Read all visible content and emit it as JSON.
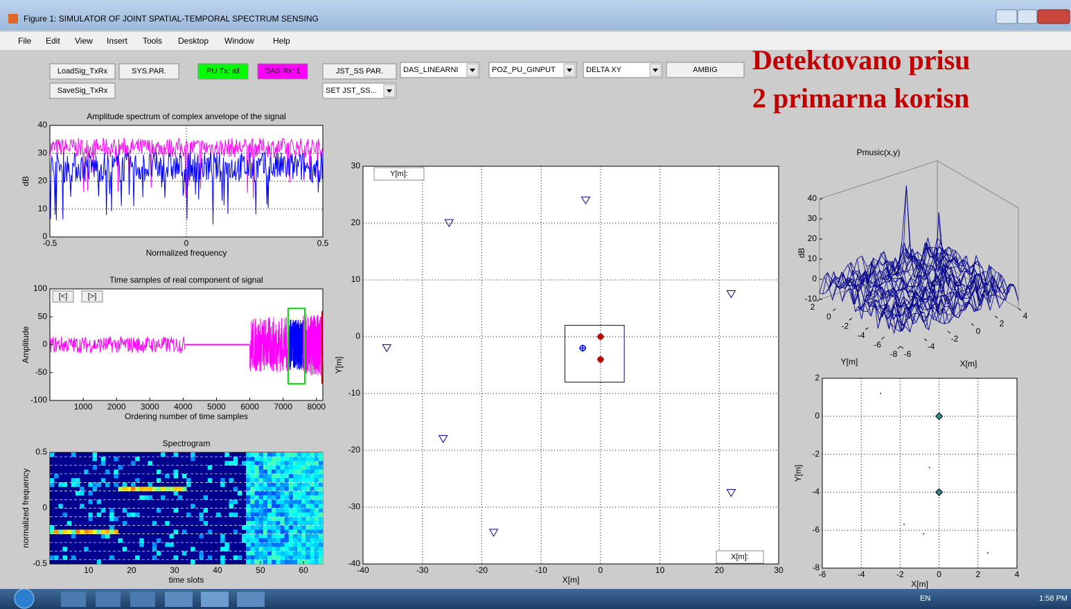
{
  "window": {
    "title": "Figure 1: SIMULATOR OF JOINT SPATIAL-TEMPORAL SPECTRUM SENSING"
  },
  "menu": [
    "File",
    "Edit",
    "View",
    "Insert",
    "Tools",
    "Desktop",
    "Window",
    "Help"
  ],
  "buttons": [
    {
      "label": "LoadSig_TxRx",
      "color": "#f0f0f0"
    },
    {
      "label": "SYS.PAR.",
      "color": "#f0f0f0"
    },
    {
      "label": "PU Tx: all",
      "color": "#00ff00"
    },
    {
      "label": "DAS Rx: 1",
      "color": "#ff00ff"
    },
    {
      "label": "JST_SS PAR.",
      "color": "#f0f0f0"
    },
    {
      "label": "AMBIG",
      "color": "#f0f0f0"
    },
    {
      "label": "SaveSig_TxRx",
      "color": "#f0f0f0"
    }
  ],
  "dropdowns": [
    "DAS_LINEARNI",
    "POZ_PU_GINPUT",
    "DELTA XY",
    "SET JST_SS..."
  ],
  "message": [
    "Detektovano prisu",
    "2 primarna korisn"
  ],
  "plots": [
    {
      "title": "Amplitude spectrum of complex anvelope of the signal",
      "xlabel": "Normalized frequency",
      "ylabel": "dB",
      "xlim": [
        -0.5,
        0.5
      ],
      "ylim": [
        0,
        40
      ],
      "xticks": [
        -0.5,
        0,
        0.5
      ],
      "yticks": [
        0,
        10,
        20,
        30,
        40
      ],
      "grid": true
    },
    {
      "title": "Time samples of real component of signal",
      "xlabel": "Ordering number of time samples",
      "ylabel": "Amplitude",
      "xlim": [
        0,
        8192
      ],
      "ylim": [
        -100,
        100
      ],
      "xticks": [
        1000,
        2000,
        3000,
        4000,
        5000,
        6000,
        7000,
        8000
      ],
      "yticks": [
        -100,
        -50,
        0,
        50,
        100
      ],
      "grid": false,
      "pager": [
        "[<]",
        "[>]"
      ]
    },
    {
      "title": "Spectrogram",
      "xlabel": "time slots",
      "ylabel": "normalized frequency",
      "xlim": [
        1,
        64.5
      ],
      "ylim": [
        -0.5,
        0.5
      ],
      "xticks": [
        10,
        20,
        30,
        40,
        50,
        60
      ],
      "yticks": [
        -0.5,
        0,
        0.5
      ],
      "grid": false
    },
    {
      "xlabel": "X[m]",
      "ylabel": "Y[m]",
      "xlim": [
        -40,
        30
      ],
      "ylim": [
        -40,
        30
      ],
      "xticks": [
        -40,
        -30,
        -20,
        -10,
        0,
        10,
        20,
        30
      ],
      "yticks": [
        -40,
        -30,
        -20,
        -10,
        0,
        10,
        20,
        30
      ],
      "grid": true,
      "annotations": [
        "Y[m]:",
        "X[m]:"
      ],
      "receivers": {
        "x": [
          -36,
          -25.5,
          -2.5,
          22,
          -26.5,
          -18,
          22
        ],
        "y": [
          -2,
          20,
          24,
          7.5,
          -18,
          -34.5,
          -27.5
        ],
        "color": "#00008b"
      },
      "targets": {
        "x": [
          0,
          0
        ],
        "y": [
          0,
          -4
        ],
        "color": "#ff0000"
      },
      "estimate": {
        "x": [
          -3
        ],
        "y": [
          -2
        ],
        "color": "#0000ff"
      },
      "region": {
        "x": [
          -6,
          4
        ],
        "y": [
          -8,
          2
        ],
        "color": "#00008b"
      }
    },
    {
      "title": "Pmusic(x,y)",
      "xlabel": "X[m]",
      "ylabel": "Y[m]",
      "zlabel": "dB",
      "xlim": [
        -6,
        4
      ],
      "ylim": [
        -8,
        2
      ],
      "zlim": [
        -10,
        40
      ],
      "xticks": [
        -6,
        -4,
        -2,
        0,
        2,
        4
      ],
      "yticks": [
        -8,
        -6,
        -4,
        -2,
        0,
        2
      ],
      "zticks": [
        -10,
        0,
        10,
        20,
        30,
        40
      ]
    },
    {
      "xlabel": "X[m]",
      "ylabel": "Y[m]",
      "xlim": [
        -6,
        4
      ],
      "ylim": [
        -8,
        2
      ],
      "xticks": [
        -6,
        -4,
        -2,
        0,
        2,
        4
      ],
      "yticks": [
        -8,
        -6,
        -4,
        -2,
        0,
        2
      ],
      "grid": true,
      "peaks": {
        "x": [
          0,
          0
        ],
        "y": [
          0,
          -4
        ],
        "color": "#2e8b8b"
      }
    }
  ],
  "taskbar": {
    "language": "EN",
    "time": "1:58 PM"
  }
}
